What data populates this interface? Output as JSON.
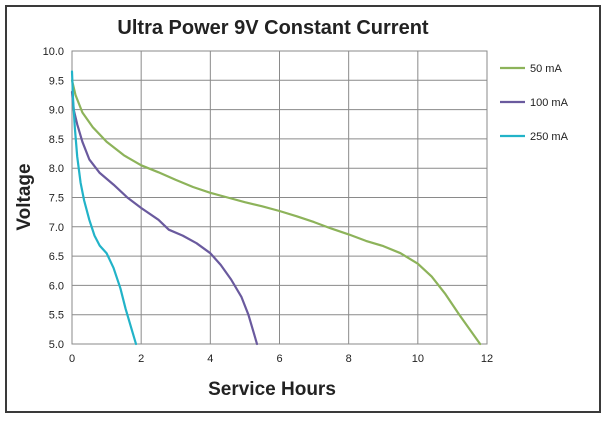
{
  "chart_data": {
    "type": "line",
    "title": "Ultra Power 9V Constant Current",
    "xlabel": "Service Hours",
    "ylabel": "Voltage",
    "xlim": [
      0,
      12
    ],
    "ylim": [
      5.0,
      10.0
    ],
    "x_ticks": [
      "0",
      "2",
      "4",
      "6",
      "8",
      "10",
      "12"
    ],
    "y_ticks": [
      "5.0",
      "5.5",
      "6.0",
      "6.5",
      "7.0",
      "7.5",
      "8.0",
      "8.5",
      "9.0",
      "9.5",
      "10.0"
    ],
    "grid": true,
    "legend_position": "right",
    "series": [
      {
        "name": "50 mA",
        "color": "#8db35a",
        "points": [
          [
            0,
            9.5
          ],
          [
            0.1,
            9.25
          ],
          [
            0.3,
            8.95
          ],
          [
            0.6,
            8.7
          ],
          [
            1,
            8.45
          ],
          [
            1.5,
            8.22
          ],
          [
            2,
            8.05
          ],
          [
            2.5,
            7.93
          ],
          [
            3,
            7.8
          ],
          [
            3.5,
            7.68
          ],
          [
            4,
            7.58
          ],
          [
            4.5,
            7.5
          ],
          [
            5,
            7.42
          ],
          [
            5.5,
            7.35
          ],
          [
            6,
            7.27
          ],
          [
            6.5,
            7.18
          ],
          [
            7,
            7.08
          ],
          [
            7.5,
            6.97
          ],
          [
            8,
            6.87
          ],
          [
            8.5,
            6.76
          ],
          [
            9,
            6.67
          ],
          [
            9.5,
            6.55
          ],
          [
            10,
            6.37
          ],
          [
            10.4,
            6.15
          ],
          [
            10.8,
            5.85
          ],
          [
            11.2,
            5.5
          ],
          [
            11.5,
            5.25
          ],
          [
            11.8,
            5.0
          ]
        ]
      },
      {
        "name": "100 mA",
        "color": "#6a5a9e",
        "points": [
          [
            0,
            9.3
          ],
          [
            0.05,
            9.0
          ],
          [
            0.15,
            8.75
          ],
          [
            0.3,
            8.45
          ],
          [
            0.5,
            8.15
          ],
          [
            0.8,
            7.92
          ],
          [
            1.2,
            7.72
          ],
          [
            1.6,
            7.5
          ],
          [
            2,
            7.32
          ],
          [
            2.5,
            7.12
          ],
          [
            2.8,
            6.95
          ],
          [
            3.2,
            6.85
          ],
          [
            3.6,
            6.72
          ],
          [
            4,
            6.55
          ],
          [
            4.3,
            6.35
          ],
          [
            4.6,
            6.1
          ],
          [
            4.9,
            5.8
          ],
          [
            5.1,
            5.5
          ],
          [
            5.25,
            5.2
          ],
          [
            5.35,
            5.0
          ]
        ]
      },
      {
        "name": "250 mA",
        "color": "#22b3c8",
        "points": [
          [
            0,
            9.65
          ],
          [
            0.03,
            9.2
          ],
          [
            0.08,
            8.7
          ],
          [
            0.15,
            8.2
          ],
          [
            0.25,
            7.75
          ],
          [
            0.35,
            7.45
          ],
          [
            0.5,
            7.12
          ],
          [
            0.65,
            6.85
          ],
          [
            0.8,
            6.68
          ],
          [
            1.0,
            6.55
          ],
          [
            1.2,
            6.3
          ],
          [
            1.4,
            5.95
          ],
          [
            1.55,
            5.6
          ],
          [
            1.7,
            5.3
          ],
          [
            1.85,
            5.0
          ]
        ]
      }
    ]
  }
}
